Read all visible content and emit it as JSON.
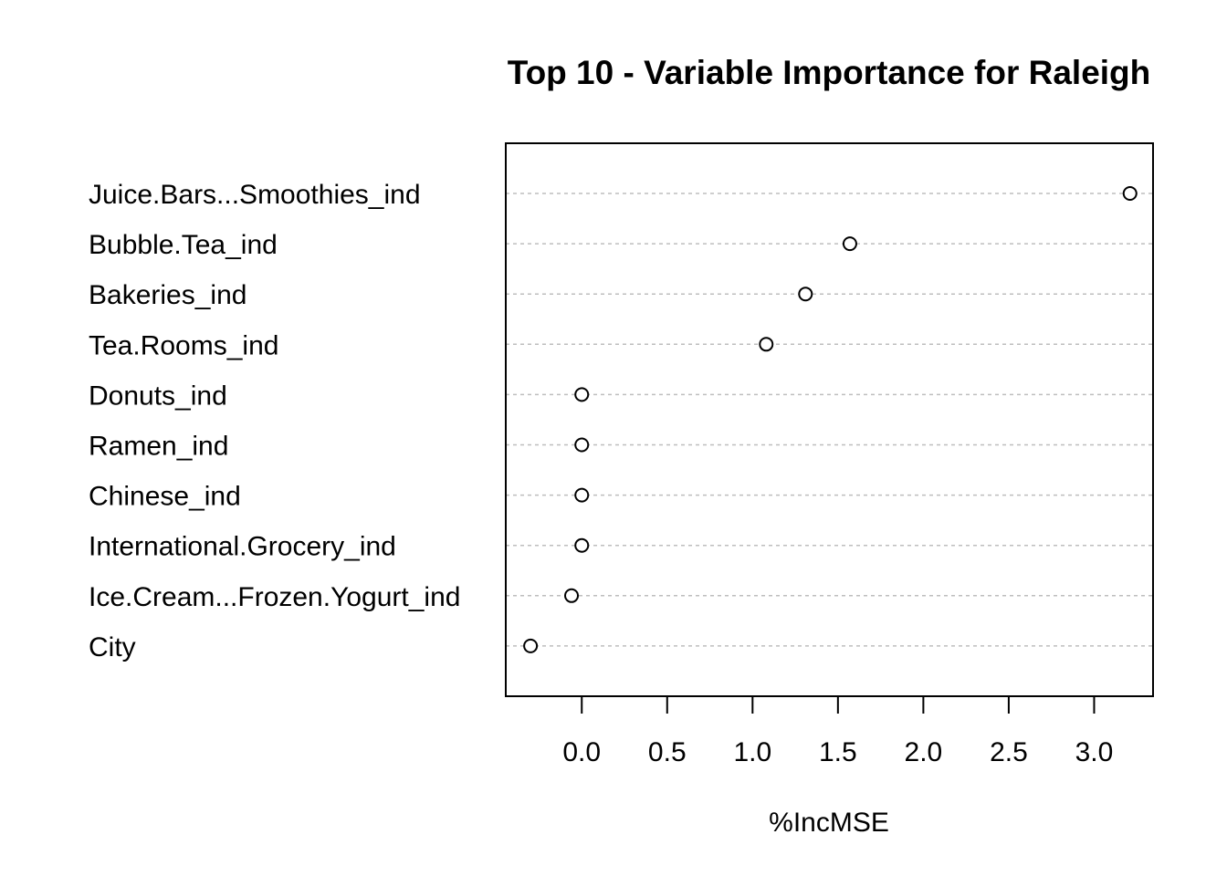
{
  "chart_data": {
    "type": "scatter",
    "title": "Top 10 - Variable Importance for Raleigh",
    "xlabel": "%IncMSE",
    "ylabel": "",
    "categories": [
      "Juice.Bars...Smoothies_ind",
      "Bubble.Tea_ind",
      "Bakeries_ind",
      "Tea.Rooms_ind",
      "Donuts_ind",
      "Ramen_ind",
      "Chinese_ind",
      "International.Grocery_ind",
      "Ice.Cream...Frozen.Yogurt_ind",
      "City"
    ],
    "values": [
      3.21,
      1.57,
      1.31,
      1.08,
      0.0,
      0.0,
      0.0,
      0.0,
      -0.06,
      -0.3
    ],
    "xlim": [
      -0.445,
      3.345
    ],
    "xticks": [
      0.0,
      0.5,
      1.0,
      1.5,
      2.0,
      2.5,
      3.0
    ],
    "xtick_labels": [
      "0.0",
      "0.5",
      "1.0",
      "1.5",
      "2.0",
      "2.5",
      "3.0"
    ],
    "grid": "dotted horizontal lines per category",
    "marker": "open-circle",
    "colors": {
      "point": "#000000",
      "grid": "#bebebe",
      "frame": "#000000"
    }
  }
}
